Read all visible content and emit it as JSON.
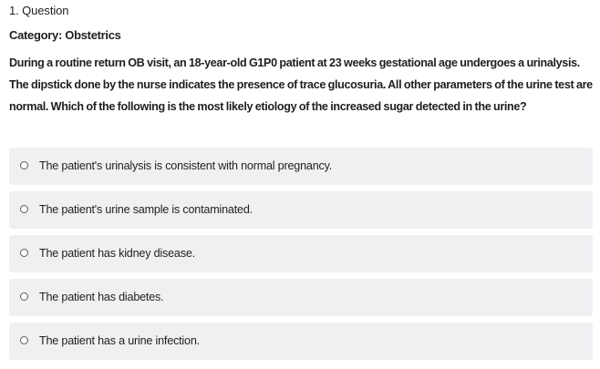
{
  "question": {
    "number_label": "1. Question",
    "category_label": "Category: Obstetrics",
    "stem": "During a routine return OB visit, an 18-year-old G1P0 patient at 23 weeks gestational age undergoes a urinalysis. The dipstick done by the nurse indicates the presence of trace glucosuria. All other parameters of the urine test are normal. Which of the following is the most likely etiology of the increased sugar detected in the urine?",
    "options": [
      {
        "label": "The patient's urinalysis is consistent with normal pregnancy.",
        "icon": "radio-unchecked"
      },
      {
        "label": "The patient's urine sample is contaminated.",
        "icon": "radio-unchecked"
      },
      {
        "label": "The patient has kidney disease.",
        "icon": "radio-unchecked"
      },
      {
        "label": "The patient has diabetes.",
        "icon": "radio-unchecked"
      },
      {
        "label": "The patient has a urine infection.",
        "icon": "radio-unchecked"
      }
    ]
  },
  "colors": {
    "option_background": "#eff0f2",
    "text": "#1f1f1f",
    "radio_border": "#5c5c5c"
  }
}
